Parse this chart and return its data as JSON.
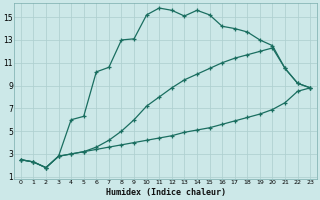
{
  "xlabel": "Humidex (Indice chaleur)",
  "bg_color": "#cce8e8",
  "line_color": "#1a6e60",
  "grid_color": "#aed0d0",
  "xlim": [
    -0.5,
    23.5
  ],
  "ylim": [
    0.8,
    16.2
  ],
  "xtick_vals": [
    0,
    1,
    2,
    3,
    4,
    5,
    6,
    7,
    8,
    9,
    10,
    11,
    12,
    13,
    14,
    15,
    16,
    17,
    18,
    19,
    20,
    21,
    22,
    23
  ],
  "ytick_vals": [
    1,
    3,
    5,
    7,
    9,
    11,
    13,
    15
  ],
  "line1_x": [
    0,
    1,
    2,
    3,
    4,
    5,
    6,
    7,
    8,
    9,
    10,
    11,
    12,
    13,
    14,
    15,
    16,
    17,
    18,
    19,
    20,
    21,
    22,
    23
  ],
  "line1_y": [
    2.5,
    2.3,
    1.8,
    2.8,
    3.0,
    3.2,
    3.4,
    3.6,
    3.8,
    4.0,
    4.2,
    4.4,
    4.6,
    4.9,
    5.1,
    5.3,
    5.6,
    5.9,
    6.2,
    6.5,
    6.9,
    7.5,
    8.5,
    8.8
  ],
  "line2_x": [
    0,
    1,
    2,
    3,
    4,
    5,
    6,
    7,
    8,
    9,
    10,
    11,
    12,
    13,
    14,
    15,
    16,
    17,
    18,
    19,
    20,
    21,
    22,
    23
  ],
  "line2_y": [
    2.5,
    2.3,
    1.8,
    2.8,
    3.0,
    3.2,
    3.6,
    4.2,
    5.0,
    6.0,
    7.2,
    8.0,
    8.8,
    9.5,
    10.0,
    10.5,
    11.0,
    11.4,
    11.7,
    12.0,
    12.3,
    10.5,
    9.2,
    8.8
  ],
  "line3_x": [
    0,
    1,
    2,
    3,
    4,
    5,
    6,
    7,
    8,
    9,
    10,
    11,
    12,
    13,
    14,
    15,
    16,
    17,
    18,
    19,
    20,
    21,
    22,
    23
  ],
  "line3_y": [
    2.5,
    2.3,
    1.8,
    2.8,
    6.0,
    6.3,
    10.2,
    10.6,
    13.0,
    13.1,
    15.2,
    15.8,
    15.6,
    15.1,
    15.6,
    15.2,
    14.2,
    14.0,
    13.7,
    13.0,
    12.5,
    10.5,
    9.2,
    8.8
  ]
}
